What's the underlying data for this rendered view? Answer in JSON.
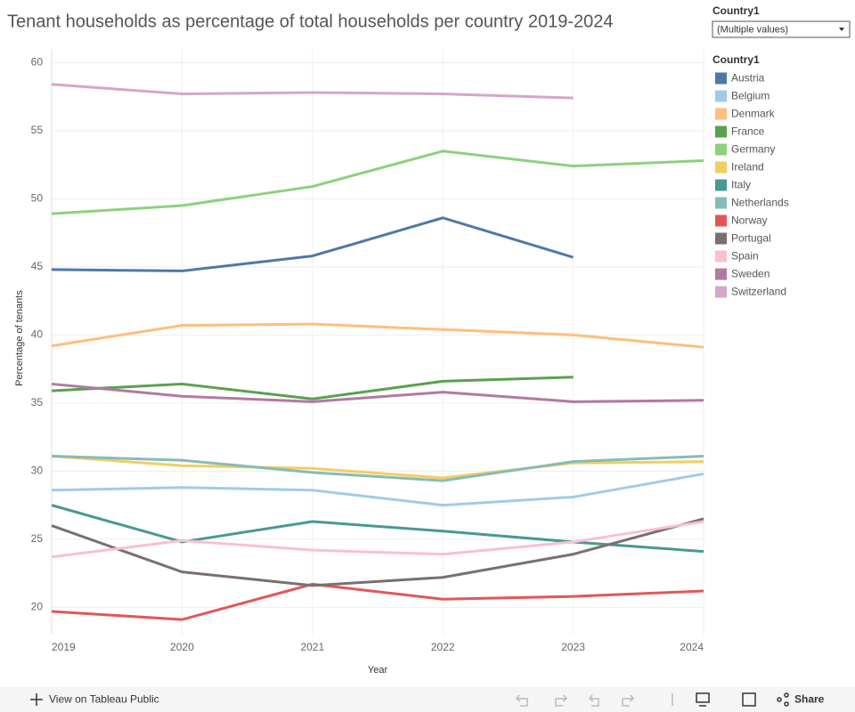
{
  "chart_data": {
    "type": "line",
    "title": "Tenant households as percentage of total households per country 2019-2024",
    "x_label": "Year",
    "y_label": "Percentage of tenants",
    "legend_title": "Country1",
    "x": [
      2019,
      2020,
      2021,
      2022,
      2023,
      2024
    ],
    "xlim": [
      2019,
      2024
    ],
    "xticks": [
      2019,
      2020,
      2021,
      2022,
      2023,
      2024
    ],
    "ylim": [
      18,
      61
    ],
    "yticks": [
      20,
      25,
      30,
      35,
      40,
      45,
      50,
      55,
      60
    ],
    "grid": true,
    "legend": "right",
    "series": [
      {
        "name": "Austria",
        "color": "#4e79a7",
        "values": [
          44.8,
          44.7,
          45.8,
          48.6,
          45.7,
          null
        ]
      },
      {
        "name": "Belgium",
        "color": "#a0cbe8",
        "values": [
          28.6,
          28.8,
          28.6,
          27.5,
          28.1,
          29.8
        ]
      },
      {
        "name": "Denmark",
        "color": "#ffbe7d",
        "values": [
          39.2,
          40.7,
          40.8,
          40.4,
          40.0,
          39.1
        ]
      },
      {
        "name": "France",
        "color": "#59a14f",
        "values": [
          35.9,
          36.4,
          35.3,
          36.6,
          36.9,
          null
        ]
      },
      {
        "name": "Germany",
        "color": "#8cd17d",
        "values": [
          48.9,
          49.5,
          50.9,
          53.5,
          52.4,
          52.8
        ]
      },
      {
        "name": "Ireland",
        "color": "#f1ce63",
        "values": [
          31.1,
          30.4,
          30.2,
          29.5,
          30.6,
          30.7
        ]
      },
      {
        "name": "Italy",
        "color": "#499894",
        "values": [
          27.5,
          24.8,
          26.3,
          25.6,
          24.8,
          24.1
        ]
      },
      {
        "name": "Netherlands",
        "color": "#86bcb6",
        "values": [
          31.1,
          30.8,
          29.9,
          29.3,
          30.7,
          31.1
        ]
      },
      {
        "name": "Norway",
        "color": "#e15759",
        "values": [
          19.7,
          19.1,
          21.7,
          20.6,
          20.8,
          21.2
        ]
      },
      {
        "name": "Portugal",
        "color": "#79706e",
        "values": [
          26.0,
          22.6,
          21.6,
          22.2,
          23.9,
          26.5
        ]
      },
      {
        "name": "Spain",
        "color": "#fabfd2",
        "values": [
          23.7,
          24.9,
          24.2,
          23.9,
          24.8,
          26.3
        ]
      },
      {
        "name": "Sweden",
        "color": "#b07aa1",
        "values": [
          36.4,
          35.5,
          35.1,
          35.8,
          35.1,
          35.2
        ]
      },
      {
        "name": "Switzerland",
        "color": "#d4a6c8",
        "values": [
          58.4,
          57.7,
          57.8,
          57.7,
          57.4,
          null
        ]
      }
    ]
  },
  "filter": {
    "label": "Country1",
    "value": "(Multiple values)"
  },
  "toolbar": {
    "view_link": "View on Tableau Public",
    "share": "Share"
  }
}
